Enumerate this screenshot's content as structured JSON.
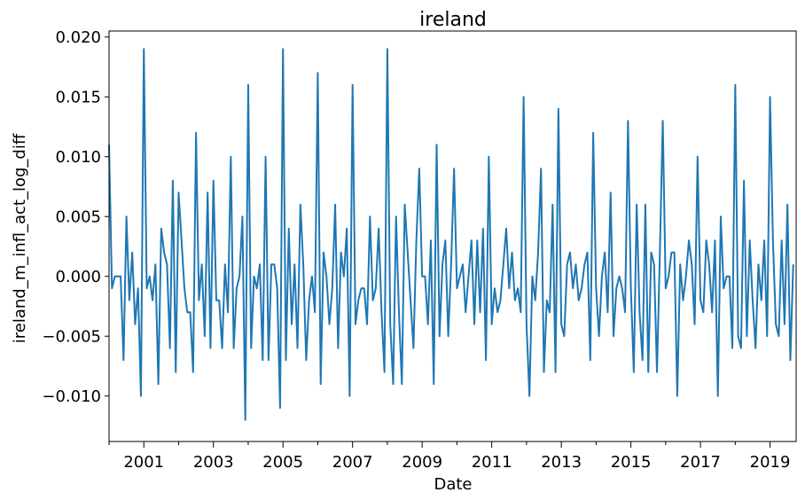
{
  "chart_data": {
    "type": "line",
    "title": "ireland",
    "xlabel": "Date",
    "ylabel": "ireland_m_infl_act_log_diff",
    "x_range": [
      "2000-01",
      "2019-10"
    ],
    "ylim": [
      -0.0138,
      0.0205
    ],
    "grid": false,
    "legend": "none",
    "color": "#1f77b4",
    "x_tick_labels": [
      "2001",
      "2003",
      "2005",
      "2007",
      "2009",
      "2011",
      "2013",
      "2015",
      "2017",
      "2019"
    ],
    "y_tick_labels": [
      "−0.010",
      "−0.005",
      "0.000",
      "0.005",
      "0.010",
      "0.015",
      "0.020"
    ],
    "series": [
      {
        "start": "2000-01",
        "frequency": "monthly",
        "values": [
          0.011,
          -0.001,
          0.0,
          0.0,
          0.0,
          -0.007,
          0.005,
          -0.002,
          0.002,
          -0.004,
          -0.001,
          -0.01,
          0.019,
          -0.001,
          0.0,
          -0.002,
          0.001,
          -0.009,
          0.004,
          0.002,
          0.001,
          -0.006,
          0.008,
          -0.008,
          0.007,
          0.003,
          -0.001,
          -0.003,
          -0.003,
          -0.008,
          0.012,
          -0.002,
          0.001,
          -0.005,
          0.007,
          -0.006,
          0.008,
          -0.002,
          -0.002,
          -0.006,
          0.001,
          -0.003,
          0.01,
          -0.006,
          -0.001,
          0.0,
          0.005,
          -0.012,
          0.016,
          -0.006,
          0.0,
          -0.001,
          0.001,
          -0.007,
          0.01,
          -0.007,
          0.001,
          0.001,
          -0.001,
          -0.011,
          0.019,
          -0.007,
          0.004,
          -0.004,
          0.001,
          -0.006,
          0.006,
          0.001,
          -0.007,
          -0.002,
          0.0,
          -0.003,
          0.017,
          -0.009,
          0.002,
          0.0,
          -0.004,
          -0.001,
          0.006,
          -0.006,
          0.002,
          0.0,
          0.004,
          -0.01,
          0.016,
          -0.004,
          -0.002,
          -0.001,
          -0.001,
          -0.004,
          0.005,
          -0.002,
          -0.001,
          0.004,
          -0.003,
          -0.008,
          0.019,
          -0.004,
          -0.009,
          0.005,
          -0.003,
          -0.009,
          0.006,
          0.002,
          -0.002,
          -0.006,
          0.003,
          0.009,
          0.0,
          0.0,
          -0.004,
          0.003,
          -0.009,
          0.011,
          -0.005,
          0.001,
          0.003,
          -0.005,
          0.001,
          0.009,
          -0.001,
          0.0,
          0.001,
          -0.003,
          0.0,
          0.003,
          -0.004,
          0.003,
          -0.003,
          0.004,
          -0.007,
          0.01,
          -0.004,
          -0.001,
          -0.003,
          -0.002,
          0.001,
          0.004,
          -0.001,
          0.002,
          -0.002,
          -0.001,
          -0.003,
          0.015,
          -0.004,
          -0.01,
          0.0,
          -0.002,
          0.002,
          0.009,
          -0.008,
          -0.002,
          -0.003,
          0.006,
          -0.008,
          0.014,
          -0.004,
          -0.005,
          0.001,
          0.002,
          -0.001,
          0.001,
          -0.002,
          -0.001,
          0.001,
          0.002,
          -0.007,
          0.012,
          -0.001,
          -0.005,
          0.0,
          0.002,
          -0.003,
          0.007,
          -0.005,
          -0.001,
          0.0,
          -0.001,
          -0.003,
          0.013,
          -0.001,
          -0.008,
          0.006,
          -0.003,
          -0.007,
          0.006,
          -0.008,
          0.002,
          0.001,
          -0.008,
          0.002,
          0.013,
          -0.001,
          0.0,
          0.002,
          0.002,
          -0.01,
          0.001,
          -0.002,
          0.0,
          0.003,
          0.001,
          -0.004,
          0.01,
          -0.002,
          -0.003,
          0.003,
          0.001,
          -0.003,
          0.003,
          -0.01,
          0.005,
          -0.001,
          0.0,
          0.0,
          -0.006,
          0.016,
          -0.005,
          -0.006,
          0.008,
          -0.005,
          0.003,
          -0.002,
          -0.006,
          0.001,
          -0.002,
          0.003,
          -0.005,
          0.015,
          0.003,
          -0.004,
          -0.005,
          0.003,
          -0.004,
          0.006,
          -0.007,
          0.001
        ]
      }
    ]
  }
}
